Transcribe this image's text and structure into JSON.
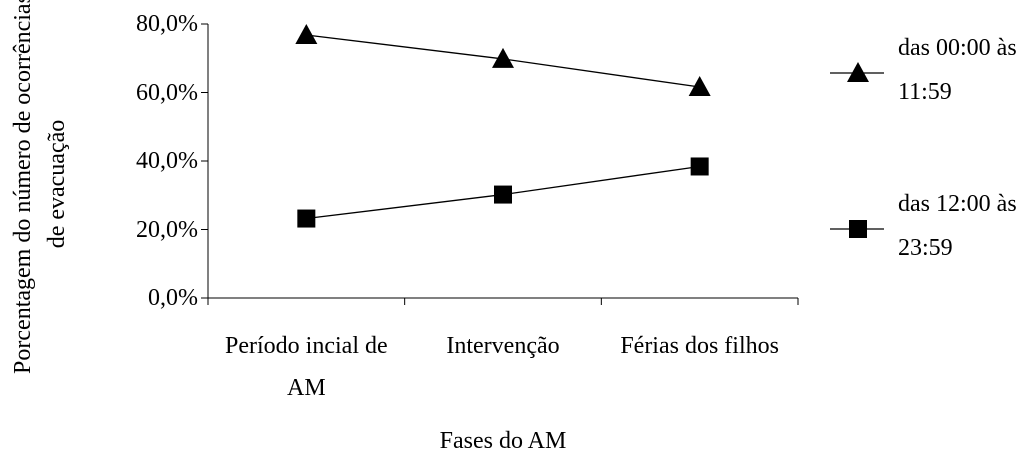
{
  "chart_data": {
    "type": "line",
    "y_label": "Porcentagem do número de ocorrências de evacuação",
    "x_label": "Fases do AM",
    "categories": [
      "Período incial de AM",
      "Intervenção",
      "Férias dos filhos"
    ],
    "series": [
      {
        "name": "das 00:00 às 11:59",
        "color": "#000000",
        "marker": "triangle",
        "values": [
          76.8,
          69.8,
          61.6
        ]
      },
      {
        "name": "das 12:00 às 23:59",
        "color": "#000000",
        "marker": "square",
        "values": [
          23.2,
          30.2,
          38.4
        ]
      }
    ],
    "ylim": [
      0,
      80
    ],
    "yticks": [
      {
        "value": 0,
        "label": "0,0%"
      },
      {
        "value": 20,
        "label": "20,0%"
      },
      {
        "value": 40,
        "label": "40,0%"
      },
      {
        "value": 60,
        "label": "60,0%"
      },
      {
        "value": 80,
        "label": "80,0%"
      }
    ],
    "grid": false,
    "legend": "right"
  }
}
